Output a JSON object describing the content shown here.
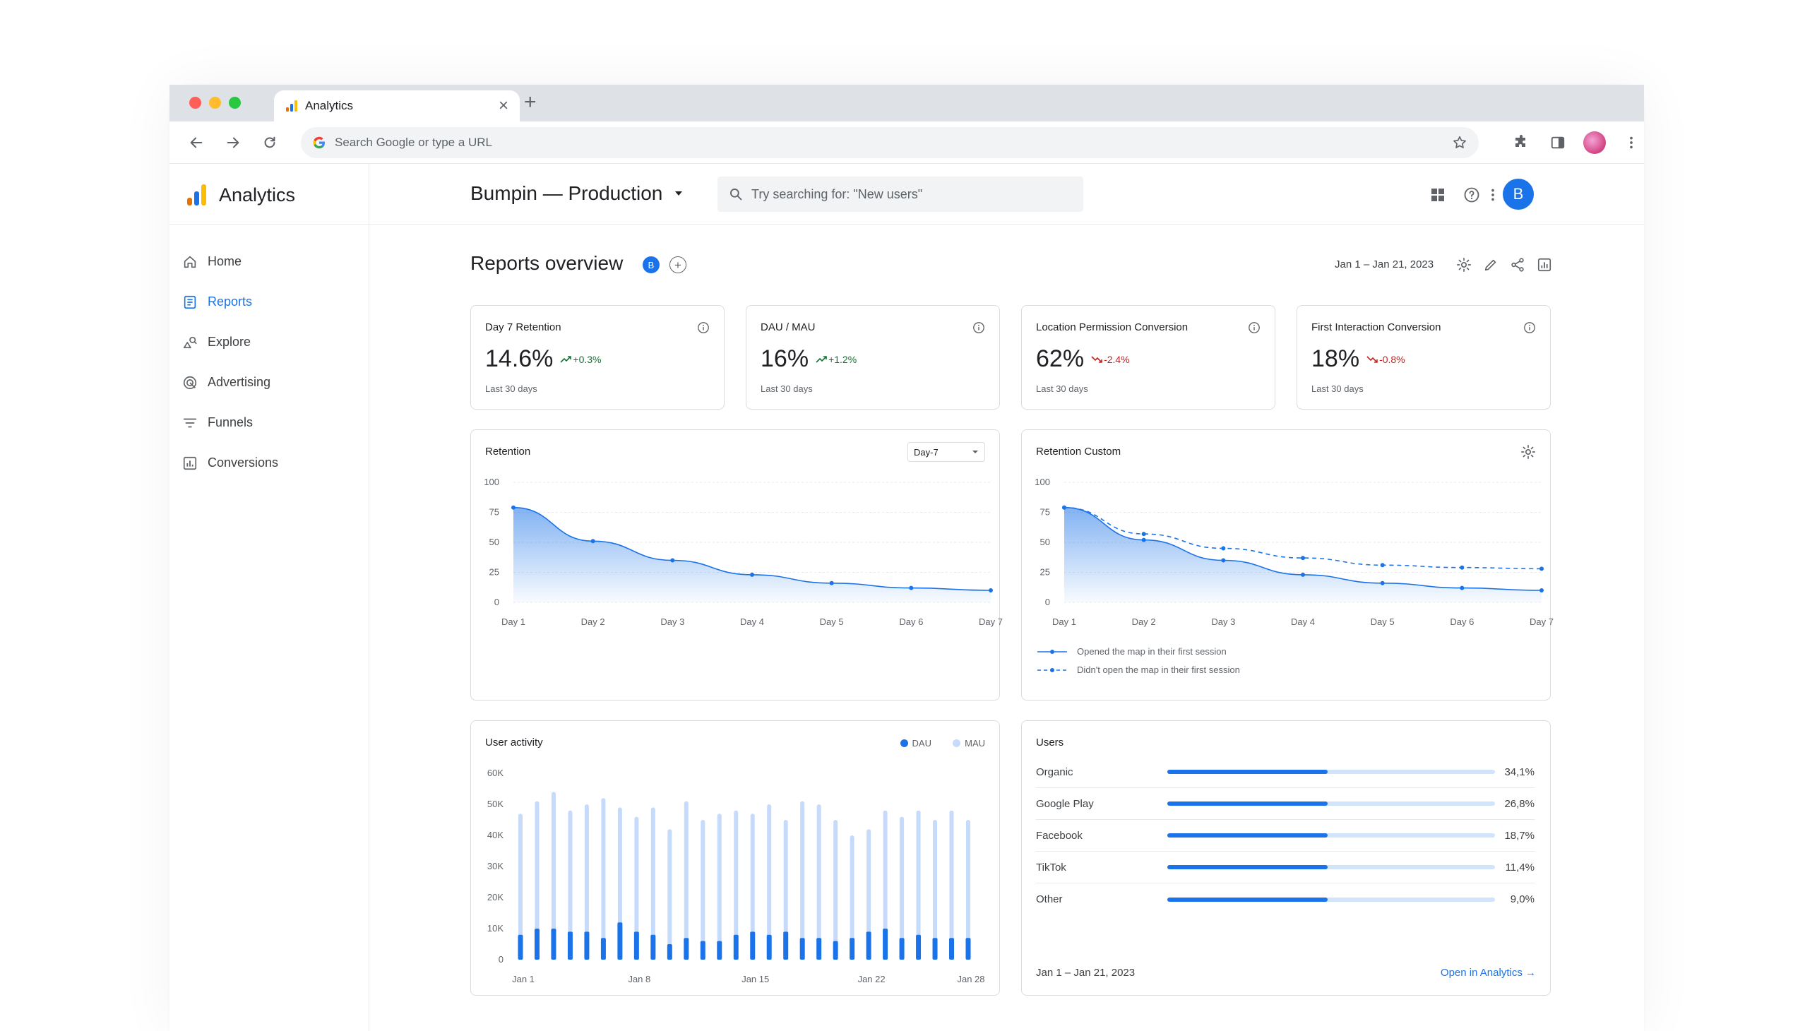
{
  "browser": {
    "tab_title": "Analytics",
    "omnibox_placeholder": "Search Google or type a URL"
  },
  "app": {
    "brand": "Analytics",
    "property": "Bumpin — Production",
    "search_placeholder": "Try searching for: \"New users\"",
    "avatar_initial": "B"
  },
  "sidebar": {
    "items": [
      {
        "label": "Home",
        "icon": "home-icon"
      },
      {
        "label": "Reports",
        "icon": "reports-icon",
        "active": true
      },
      {
        "label": "Explore",
        "icon": "explore-icon"
      },
      {
        "label": "Advertising",
        "icon": "advertising-icon"
      },
      {
        "label": "Funnels",
        "icon": "funnels-icon"
      },
      {
        "label": "Conversions",
        "icon": "conversions-icon"
      }
    ]
  },
  "page": {
    "title": "Reports overview",
    "badge": "B",
    "date_range": "Jan 1 – Jan 21, 2023"
  },
  "kpis": [
    {
      "title": "Day 7 Retention",
      "value": "14.6%",
      "delta": "+0.3%",
      "trend": "up",
      "sub": "Last 30 days"
    },
    {
      "title": "DAU / MAU",
      "value": "16%",
      "delta": "+1.2%",
      "trend": "up",
      "sub": "Last 30 days"
    },
    {
      "title": "Location Permission Conversion",
      "value": "62%",
      "delta": "-2.4%",
      "trend": "down",
      "sub": "Last 30 days"
    },
    {
      "title": "First Interaction Conversion",
      "value": "18%",
      "delta": "-0.8%",
      "trend": "down",
      "sub": "Last 30 days"
    }
  ],
  "colors": {
    "accent": "#1a73e8",
    "light_accent": "#c6dafc",
    "up": "#137333",
    "down": "#c5221f"
  },
  "retention": {
    "title": "Retention",
    "dropdown": "Day-7"
  },
  "retention_custom": {
    "title": "Retention Custom",
    "legend": [
      "Opened the map in their first session",
      "Didn't open the map in their first session"
    ]
  },
  "user_activity": {
    "title": "User activity",
    "legend": [
      "DAU",
      "MAU"
    ]
  },
  "users": {
    "title": "Users",
    "rows": [
      {
        "label": "Organic",
        "value": "34,1%",
        "share": 0.49
      },
      {
        "label": "Google Play",
        "value": "26,8%",
        "share": 0.49
      },
      {
        "label": "Facebook",
        "value": "18,7%",
        "share": 0.49
      },
      {
        "label": "TikTok",
        "value": "11,4%",
        "share": 0.49
      },
      {
        "label": "Other",
        "value": "9,0%",
        "share": 0.49
      }
    ],
    "footer_date": "Jan 1 – Jan 21, 2023",
    "footer_link": "Open in Analytics →"
  },
  "chart_data": [
    {
      "type": "area",
      "title": "Retention",
      "categories": [
        "Day 1",
        "Day 2",
        "Day 3",
        "Day 4",
        "Day 5",
        "Day 6",
        "Day 7"
      ],
      "series": [
        {
          "values": [
            79,
            51,
            35,
            23,
            16,
            12,
            10
          ]
        }
      ],
      "ylim": [
        0,
        100
      ],
      "yticks": [
        "100",
        "75",
        "50",
        "25",
        "0"
      ],
      "grid": true
    },
    {
      "type": "area",
      "title": "Retention Custom",
      "categories": [
        "Day 1",
        "Day 2",
        "Day 3",
        "Day 4",
        "Day 5",
        "Day 6",
        "Day 7"
      ],
      "series": [
        {
          "name": "Opened the map in their first session",
          "values": [
            79,
            52,
            35,
            23,
            16,
            12,
            10
          ]
        },
        {
          "name": "Didn't open the map in their first session",
          "values": [
            79,
            57,
            45,
            37,
            31,
            29,
            28
          ]
        }
      ],
      "ylim": [
        0,
        100
      ],
      "yticks": [
        "100",
        "75",
        "50",
        "25",
        "0"
      ],
      "legend": "bottom-left",
      "grid": true
    },
    {
      "type": "bar",
      "title": "User activity",
      "categories": [
        "Jan 1",
        "Jan 2",
        "Jan 3",
        "Jan 4",
        "Jan 5",
        "Jan 6",
        "Jan 7",
        "Jan 8",
        "Jan 9",
        "Jan 10",
        "Jan 11",
        "Jan 12",
        "Jan 13",
        "Jan 14",
        "Jan 15",
        "Jan 16",
        "Jan 17",
        "Jan 18",
        "Jan 19",
        "Jan 20",
        "Jan 21",
        "Jan 22",
        "Jan 23",
        "Jan 24",
        "Jan 25",
        "Jan 26",
        "Jan 27",
        "Jan 28"
      ],
      "xticks": [
        "Jan 1",
        "Jan 8",
        "Jan 15",
        "Jan 22",
        "Jan 28"
      ],
      "series": [
        {
          "name": "DAU",
          "values": [
            8000,
            10000,
            10000,
            9000,
            9000,
            7000,
            12000,
            9000,
            8000,
            5000,
            7000,
            6000,
            6000,
            8000,
            9000,
            8000,
            9000,
            7000,
            7000,
            6000,
            7000,
            9000,
            10000,
            7000,
            8000,
            7000,
            7000,
            7000
          ]
        },
        {
          "name": "MAU",
          "values": [
            47000,
            51000,
            54000,
            48000,
            50000,
            52000,
            49000,
            46000,
            49000,
            42000,
            51000,
            45000,
            47000,
            48000,
            47000,
            50000,
            45000,
            51000,
            50000,
            45000,
            40000,
            42000,
            48000,
            46000,
            48000,
            45000,
            48000,
            45000
          ]
        }
      ],
      "ylim": [
        0,
        60000
      ],
      "yticks": [
        "60K",
        "50K",
        "40K",
        "30K",
        "20K",
        "10K",
        "0"
      ],
      "legend": "top-right"
    }
  ]
}
